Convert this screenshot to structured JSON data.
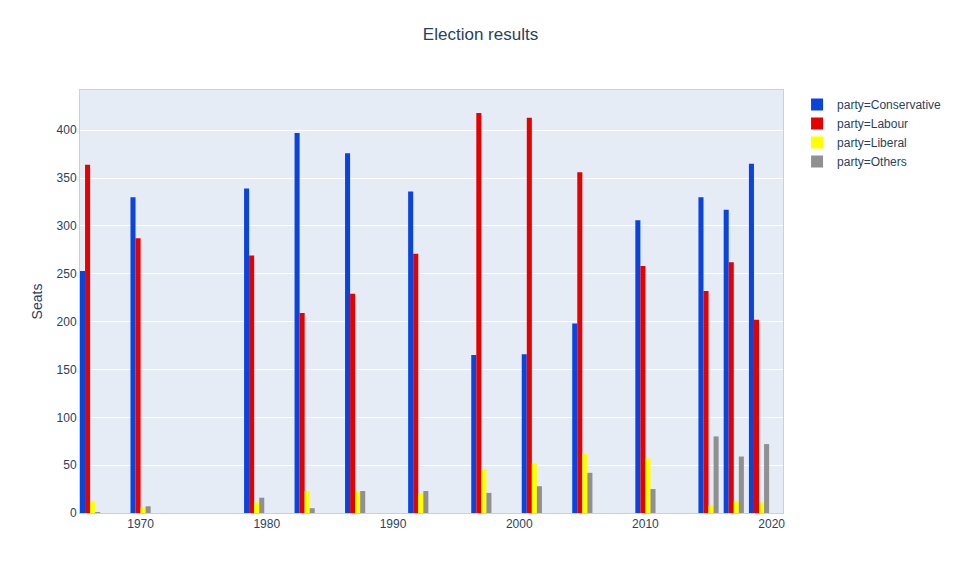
{
  "chart_data": {
    "type": "bar",
    "title": "Election results",
    "y_label": "Seats",
    "x": [
      1966,
      1970,
      1979,
      1983,
      1987,
      1992,
      1997,
      2001,
      2005,
      2010,
      2015,
      2017,
      2019
    ],
    "series": [
      {
        "name": "party=Conservative",
        "color": "#0a44dc",
        "values": [
          253,
          330,
          339,
          397,
          376,
          336,
          165,
          166,
          198,
          306,
          330,
          317,
          365
        ]
      },
      {
        "name": "party=Labour",
        "color": "#e60000",
        "values": [
          364,
          287,
          269,
          209,
          229,
          271,
          418,
          413,
          356,
          258,
          232,
          262,
          202
        ]
      },
      {
        "name": "party=Liberal",
        "color": "#ffff00",
        "values": [
          12,
          6,
          11,
          23,
          22,
          20,
          46,
          52,
          62,
          57,
          8,
          12,
          11
        ]
      },
      {
        "name": "party=Others",
        "color": "#909090",
        "values": [
          1,
          7,
          16,
          5,
          23,
          23,
          21,
          28,
          42,
          25,
          80,
          59,
          72
        ]
      }
    ],
    "xlim": [
      1965.2,
      2020.9
    ],
    "xticks": [
      1970,
      1980,
      1990,
      2000,
      2010,
      2020
    ],
    "ylim": [
      0,
      442
    ],
    "yticks": [
      0,
      50,
      100,
      150,
      200,
      250,
      300,
      350,
      400
    ],
    "grid": true,
    "legend": "right"
  }
}
